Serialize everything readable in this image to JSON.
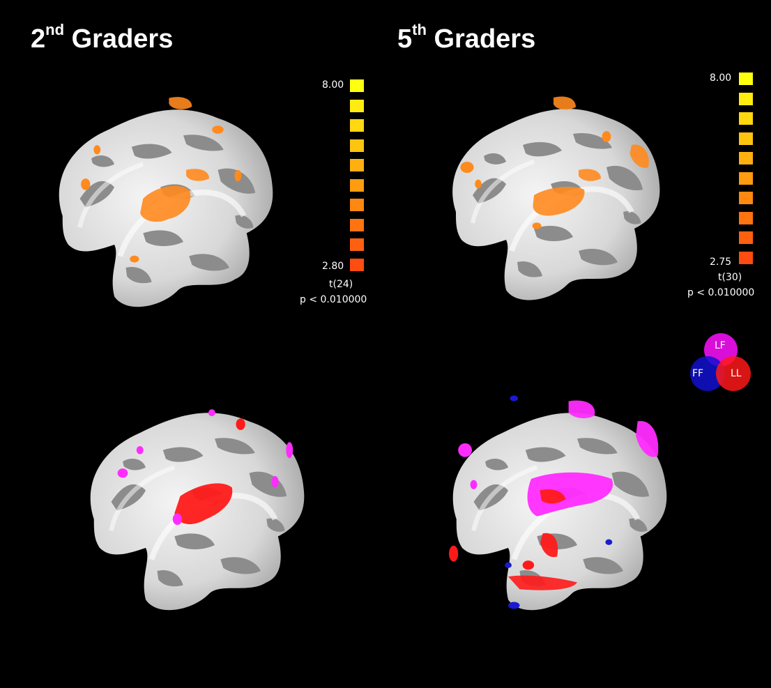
{
  "titles": {
    "left": {
      "base": "2",
      "sup": "nd",
      "rest": " Graders"
    },
    "right": {
      "base": "5",
      "sup": "th",
      "rest": "  Graders"
    }
  },
  "scales": {
    "left": {
      "max": "8.00",
      "min": "2.80",
      "dof": "t(24)",
      "p": "p < 0.010000"
    },
    "right": {
      "max": "8.00",
      "min": "2.75",
      "dof": "t(30)",
      "p": "p < 0.010000"
    }
  },
  "scale_colors": [
    "#ffff10",
    "#ffec10",
    "#ffd810",
    "#ffc410",
    "#ffb010",
    "#ff9c10",
    "#ff8810",
    "#ff7410",
    "#ff6010",
    "#ff4c10"
  ],
  "legend": {
    "lf": "LF",
    "ff": "FF",
    "ll": "LL",
    "colors": {
      "lf": "#ff10ff",
      "ff": "#1010d0",
      "ll": "#ff1818"
    }
  },
  "activation_colors": {
    "orange": "#ff8a1e",
    "red": "#ff1a1a",
    "magenta": "#ff2cff",
    "blue": "#1a1ad0"
  }
}
